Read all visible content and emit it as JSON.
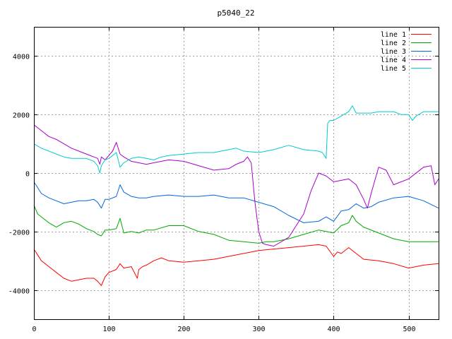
{
  "chart_data": {
    "type": "line",
    "title": "p5040_22",
    "xlim": [
      0,
      540
    ],
    "ylim": [
      -5000,
      5000
    ],
    "xticks": [
      0,
      100,
      200,
      300,
      400,
      500
    ],
    "yticks": [
      -4000,
      -2000,
      0,
      2000,
      4000
    ],
    "grid": true,
    "legend_position": "top-right",
    "series": [
      {
        "name": "line 1",
        "color": "#ff0000",
        "x": [
          0,
          10,
          20,
          30,
          40,
          50,
          60,
          70,
          80,
          85,
          90,
          95,
          100,
          110,
          115,
          120,
          130,
          138,
          140,
          145,
          150,
          160,
          170,
          180,
          200,
          220,
          240,
          260,
          280,
          300,
          320,
          340,
          360,
          380,
          390,
          400,
          405,
          410,
          420,
          430,
          440,
          460,
          480,
          500,
          520,
          540
        ],
        "y": [
          -2600,
          -3000,
          -3200,
          -3400,
          -3600,
          -3700,
          -3650,
          -3600,
          -3600,
          -3700,
          -3850,
          -3550,
          -3400,
          -3300,
          -3100,
          -3250,
          -3200,
          -3600,
          -3300,
          -3200,
          -3150,
          -3000,
          -2900,
          -3000,
          -3050,
          -3000,
          -2950,
          -2850,
          -2750,
          -2650,
          -2600,
          -2550,
          -2500,
          -2450,
          -2500,
          -2850,
          -2700,
          -2750,
          -2550,
          -2750,
          -2950,
          -3000,
          -3100,
          -3250,
          -3150,
          -3100
        ]
      },
      {
        "name": "line 2",
        "color": "#00aa00",
        "x": [
          0,
          5,
          10,
          20,
          30,
          40,
          50,
          60,
          70,
          80,
          85,
          90,
          95,
          100,
          110,
          115,
          120,
          130,
          140,
          150,
          160,
          180,
          200,
          220,
          240,
          260,
          280,
          300,
          310,
          320,
          330,
          340,
          360,
          380,
          390,
          400,
          410,
          420,
          425,
          430,
          440,
          460,
          480,
          500,
          520,
          540
        ],
        "y": [
          -1100,
          -1400,
          -1500,
          -1700,
          -1850,
          -1700,
          -1650,
          -1750,
          -1900,
          -2000,
          -2100,
          -2150,
          -1950,
          -1950,
          -1900,
          -1550,
          -2050,
          -2000,
          -2050,
          -1950,
          -1950,
          -1800,
          -1800,
          -2000,
          -2100,
          -2300,
          -2350,
          -2400,
          -2350,
          -2350,
          -2300,
          -2250,
          -2100,
          -1950,
          -2000,
          -2050,
          -1800,
          -1700,
          -1450,
          -1650,
          -1850,
          -2050,
          -2250,
          -2350,
          -2350,
          -2350
        ]
      },
      {
        "name": "line 3",
        "color": "#0066dd",
        "x": [
          0,
          10,
          20,
          30,
          40,
          50,
          60,
          70,
          80,
          85,
          90,
          95,
          100,
          110,
          115,
          120,
          130,
          140,
          150,
          160,
          180,
          200,
          220,
          240,
          260,
          280,
          300,
          320,
          340,
          360,
          380,
          390,
          400,
          410,
          420,
          430,
          440,
          450,
          460,
          480,
          500,
          520,
          540
        ],
        "y": [
          -300,
          -700,
          -850,
          -950,
          -1050,
          -1000,
          -950,
          -950,
          -900,
          -1000,
          -1200,
          -900,
          -900,
          -800,
          -400,
          -650,
          -800,
          -850,
          -850,
          -800,
          -750,
          -800,
          -800,
          -750,
          -850,
          -850,
          -1000,
          -1150,
          -1450,
          -1700,
          -1650,
          -1500,
          -1650,
          -1300,
          -1250,
          -1050,
          -1200,
          -1150,
          -1000,
          -850,
          -800,
          -950,
          -1200
        ]
      },
      {
        "name": "line 4",
        "color": "#aa00cc",
        "x": [
          0,
          10,
          20,
          30,
          40,
          50,
          60,
          70,
          80,
          85,
          88,
          90,
          95,
          100,
          105,
          110,
          115,
          120,
          130,
          140,
          150,
          160,
          170,
          180,
          200,
          220,
          240,
          260,
          270,
          280,
          285,
          290,
          295,
          300,
          305,
          310,
          320,
          330,
          340,
          350,
          360,
          370,
          380,
          390,
          400,
          410,
          420,
          430,
          440,
          445,
          450,
          460,
          470,
          480,
          500,
          520,
          530,
          535,
          540
        ],
        "y": [
          1650,
          1450,
          1250,
          1150,
          1000,
          850,
          750,
          650,
          550,
          500,
          300,
          550,
          450,
          600,
          750,
          1050,
          650,
          550,
          400,
          350,
          300,
          350,
          400,
          450,
          400,
          250,
          100,
          150,
          300,
          400,
          550,
          350,
          -1000,
          -2000,
          -2400,
          -2450,
          -2500,
          -2350,
          -2200,
          -1800,
          -1400,
          -600,
          0,
          -100,
          -300,
          -250,
          -200,
          -400,
          -900,
          -1200,
          -700,
          200,
          100,
          -400,
          -200,
          200,
          250,
          -400,
          -200
        ]
      },
      {
        "name": "line 5",
        "color": "#00cccc",
        "x": [
          0,
          10,
          20,
          30,
          40,
          50,
          60,
          70,
          80,
          85,
          88,
          90,
          95,
          100,
          110,
          115,
          120,
          130,
          140,
          150,
          160,
          170,
          180,
          200,
          220,
          240,
          260,
          270,
          280,
          300,
          320,
          340,
          360,
          380,
          385,
          390,
          392,
          395,
          400,
          410,
          420,
          425,
          430,
          440,
          450,
          460,
          470,
          480,
          490,
          500,
          505,
          510,
          520,
          530,
          540
        ],
        "y": [
          1000,
          850,
          750,
          650,
          550,
          500,
          500,
          500,
          400,
          250,
          0,
          250,
          450,
          500,
          700,
          200,
          350,
          500,
          550,
          500,
          450,
          550,
          600,
          650,
          700,
          700,
          800,
          850,
          750,
          700,
          800,
          950,
          800,
          750,
          700,
          500,
          1700,
          1800,
          1800,
          1950,
          2100,
          2300,
          2050,
          2050,
          2050,
          2100,
          2100,
          2100,
          2000,
          2000,
          1800,
          1950,
          2100,
          2100,
          2100
        ]
      }
    ]
  }
}
